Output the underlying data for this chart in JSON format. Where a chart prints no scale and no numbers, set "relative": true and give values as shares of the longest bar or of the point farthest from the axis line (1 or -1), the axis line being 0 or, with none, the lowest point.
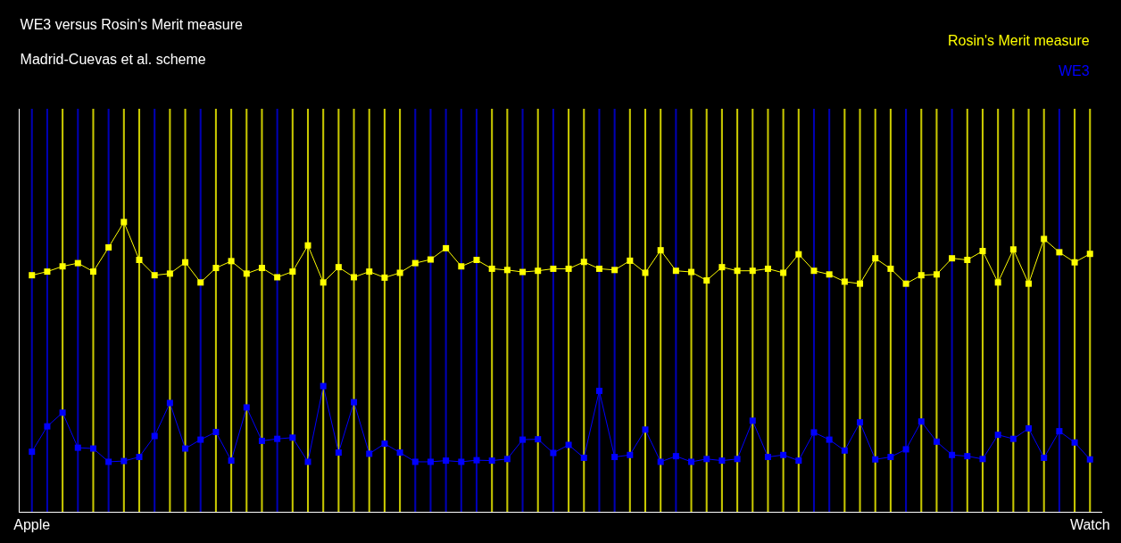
{
  "chart_data": {
    "type": "line",
    "title": "WE3 versus Rosin's Merit measure",
    "subtitle": "Madrid-Cuevas et al. scheme",
    "relative": true,
    "marker": "square",
    "legend": "top right",
    "grid": false,
    "categories": [
      "Apple",
      null,
      null,
      null,
      null,
      null,
      null,
      null,
      null,
      null,
      null,
      null,
      null,
      null,
      null,
      null,
      null,
      null,
      null,
      null,
      null,
      null,
      null,
      null,
      null,
      null,
      null,
      null,
      null,
      null,
      null,
      null,
      null,
      null,
      null,
      null,
      null,
      null,
      null,
      null,
      null,
      null,
      null,
      null,
      null,
      null,
      null,
      null,
      null,
      null,
      null,
      null,
      null,
      null,
      null,
      null,
      null,
      null,
      null,
      null,
      null,
      null,
      null,
      null,
      null,
      null,
      null,
      null,
      null,
      "Watch"
    ],
    "series": [
      {
        "type": "bar",
        "values": [
          1,
          1,
          1,
          1,
          1,
          1,
          1,
          1,
          1,
          1,
          1,
          1,
          1,
          1,
          1,
          1,
          1,
          1,
          1,
          1,
          1,
          1,
          1,
          1,
          1,
          1,
          1,
          1,
          1,
          1,
          1,
          1,
          1,
          1,
          1,
          1,
          1,
          1,
          1,
          1,
          1,
          1,
          1,
          1,
          1,
          1,
          1,
          1,
          1,
          1,
          1,
          1,
          1,
          1,
          1,
          1,
          1,
          1,
          1,
          1,
          1,
          1,
          1,
          1,
          1,
          1,
          1,
          1,
          1,
          1
        ],
        "colors": [
          "#0000b4",
          "#0000b4",
          "#c8c800",
          "#0000b4",
          "#c8c800",
          "#0000b4",
          "#c8c800",
          "#c8c800",
          "#0000b4",
          "#c8c800",
          "#c8c800",
          "#0000b4",
          "#c8c800",
          "#c8c800",
          "#c8c800",
          "#c8c800",
          "#0000b4",
          "#c8c800",
          "#c8c800",
          "#c8c800",
          "#c8c800",
          "#c8c800",
          "#c8c800",
          "#c8c800",
          "#c8c800",
          "#0000b4",
          "#0000b4",
          "#0000b4",
          "#0000b4",
          "#0000b4",
          "#c8c800",
          "#c8c800",
          "#0000b4",
          "#c8c800",
          "#0000b4",
          "#c8c800",
          "#c8c800",
          "#0000b4",
          "#0000b4",
          "#c8c800",
          "#c8c800",
          "#c8c800",
          "#0000b4",
          "#c8c800",
          "#c8c800",
          "#c8c800",
          "#c8c800",
          "#c8c800",
          "#c8c800",
          "#c8c800",
          "#c8c800",
          "#0000b4",
          "#0000b4",
          "#c8c800",
          "#c8c800",
          "#c8c800",
          "#c8c800",
          "#0000b4",
          "#c8c800",
          "#c8c800",
          "#0000b4",
          "#c8c800",
          "#c8c800",
          "#c8c800",
          "#c8c800",
          "#c8c800",
          "#c8c800",
          "#0000b4",
          "#c8c800",
          "#c8c800"
        ]
      },
      {
        "name": "Rosin's Merit measure",
        "color": "#ffff00",
        "values": [
          0.587,
          0.596,
          0.609,
          0.617,
          0.596,
          0.656,
          0.719,
          0.625,
          0.587,
          0.591,
          0.619,
          0.569,
          0.605,
          0.622,
          0.591,
          0.605,
          0.582,
          0.596,
          0.661,
          0.569,
          0.607,
          0.582,
          0.596,
          0.581,
          0.593,
          0.617,
          0.626,
          0.654,
          0.609,
          0.625,
          0.603,
          0.6,
          0.595,
          0.598,
          0.603,
          0.603,
          0.62,
          0.603,
          0.6,
          0.623,
          0.593,
          0.649,
          0.598,
          0.595,
          0.574,
          0.607,
          0.598,
          0.598,
          0.603,
          0.593,
          0.639,
          0.598,
          0.589,
          0.571,
          0.566,
          0.629,
          0.603,
          0.566,
          0.587,
          0.589,
          0.629,
          0.625,
          0.647,
          0.569,
          0.651,
          0.566,
          0.677,
          0.644,
          0.619,
          0.64
        ]
      },
      {
        "name": "WE3",
        "color": "#0000ff",
        "values": [
          0.149,
          0.212,
          0.246,
          0.159,
          0.157,
          0.124,
          0.126,
          0.136,
          0.188,
          0.27,
          0.157,
          0.179,
          0.198,
          0.127,
          0.259,
          0.176,
          0.181,
          0.184,
          0.124,
          0.312,
          0.147,
          0.272,
          0.144,
          0.169,
          0.147,
          0.124,
          0.124,
          0.127,
          0.124,
          0.128,
          0.127,
          0.131,
          0.179,
          0.18,
          0.146,
          0.166,
          0.134,
          0.3,
          0.136,
          0.141,
          0.204,
          0.124,
          0.138,
          0.124,
          0.131,
          0.127,
          0.131,
          0.226,
          0.136,
          0.141,
          0.127,
          0.197,
          0.179,
          0.152,
          0.222,
          0.13,
          0.136,
          0.155,
          0.224,
          0.174,
          0.141,
          0.138,
          0.131,
          0.191,
          0.181,
          0.207,
          0.134,
          0.2,
          0.172,
          0.13
        ]
      }
    ]
  }
}
